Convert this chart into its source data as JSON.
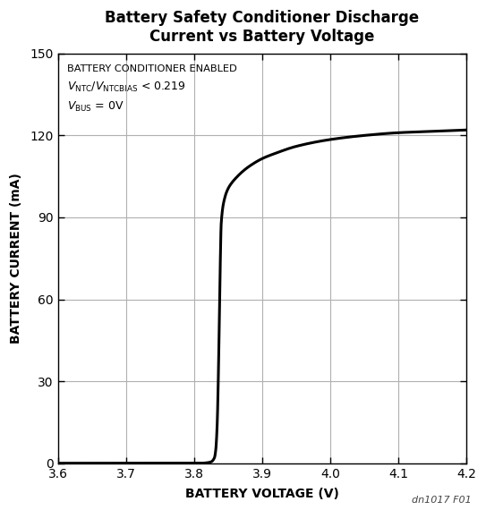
{
  "title": "Battery Safety Conditioner Discharge\nCurrent vs Battery Voltage",
  "xlabel": "BATTERY VOLTAGE (V)",
  "ylabel": "BATTERY CURRENT (mA)",
  "xlim": [
    3.6,
    4.2
  ],
  "ylim": [
    0,
    150
  ],
  "xticks": [
    3.6,
    3.7,
    3.8,
    3.9,
    4.0,
    4.1,
    4.2
  ],
  "yticks": [
    0,
    30,
    60,
    90,
    120,
    150
  ],
  "footnote": "dn1017 F01",
  "curve_color": "#000000",
  "background_color": "#ffffff",
  "grid_color": "#b0b0b0",
  "curve_points_v": [
    3.6,
    3.7,
    3.75,
    3.8,
    3.81,
    3.82,
    3.825,
    3.83,
    3.832,
    3.834,
    3.836,
    3.838,
    3.84,
    3.845,
    3.85,
    3.855,
    3.86,
    3.87,
    3.88,
    3.9,
    3.92,
    3.95,
    4.0,
    4.05,
    4.1,
    4.15,
    4.2
  ],
  "curve_points_i": [
    0.0,
    0.0,
    0.0,
    0.0,
    0.0,
    0.2,
    0.5,
    2.0,
    5.0,
    14.0,
    35.0,
    65.0,
    88.0,
    97.0,
    100.5,
    102.5,
    104.0,
    106.5,
    108.5,
    111.5,
    113.5,
    116.0,
    118.5,
    120.0,
    121.0,
    121.5,
    122.0
  ]
}
